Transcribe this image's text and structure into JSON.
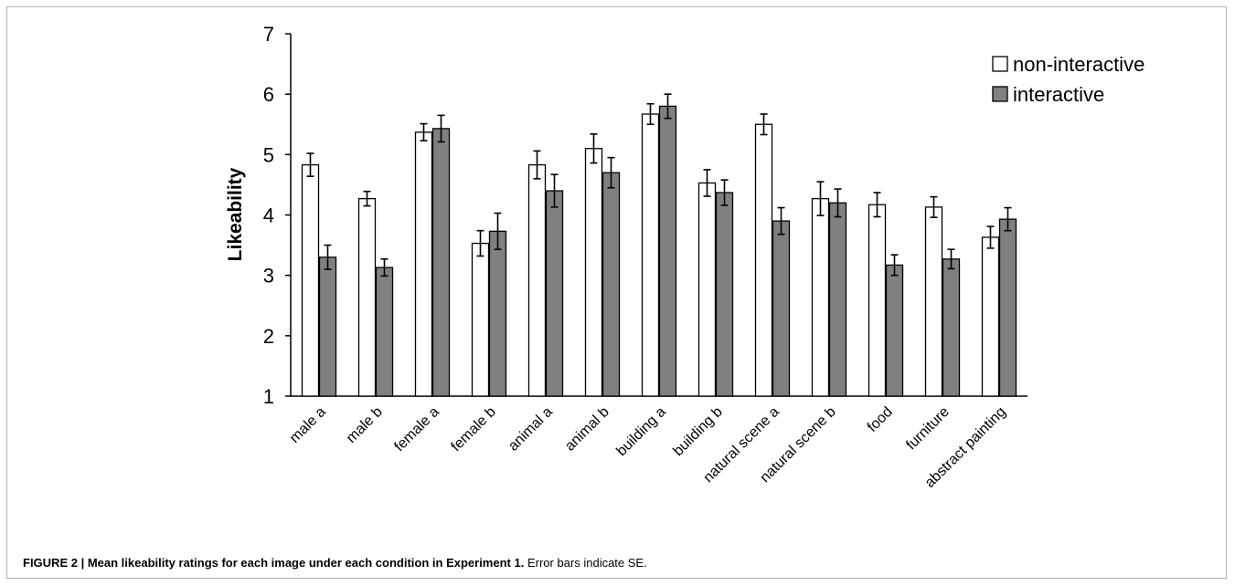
{
  "chart_data": {
    "type": "bar",
    "ylabel": "Likeability",
    "xlabel": "",
    "ylim": [
      1,
      7
    ],
    "yticks": [
      1,
      2,
      3,
      4,
      5,
      6,
      7
    ],
    "grid": false,
    "legend_position": "top-right",
    "categories": [
      "male a",
      "male b",
      "female a",
      "female b",
      "animal a",
      "animal b",
      "building a",
      "building b",
      "natural scene a",
      "natural scene b",
      "food",
      "furniture",
      "abstract painting"
    ],
    "series": [
      {
        "name": "non-interactive",
        "color": "#ffffff",
        "values": [
          4.83,
          4.27,
          5.37,
          3.53,
          4.83,
          5.1,
          5.67,
          4.53,
          5.5,
          4.27,
          4.17,
          4.13,
          3.63
        ],
        "errors": [
          0.19,
          0.12,
          0.14,
          0.21,
          0.23,
          0.24,
          0.17,
          0.22,
          0.17,
          0.28,
          0.2,
          0.17,
          0.18
        ]
      },
      {
        "name": "interactive",
        "color": "#808080",
        "values": [
          3.3,
          3.13,
          5.43,
          3.73,
          4.4,
          4.7,
          5.8,
          4.37,
          3.9,
          4.2,
          3.17,
          3.27,
          3.93
        ],
        "errors": [
          0.2,
          0.14,
          0.22,
          0.3,
          0.27,
          0.25,
          0.2,
          0.21,
          0.22,
          0.23,
          0.17,
          0.16,
          0.19
        ]
      }
    ]
  },
  "caption": {
    "bold": "FIGURE 2 | Mean likeability ratings for each image under each condition in Experiment 1.",
    "text": " Error bars indicate SE."
  }
}
